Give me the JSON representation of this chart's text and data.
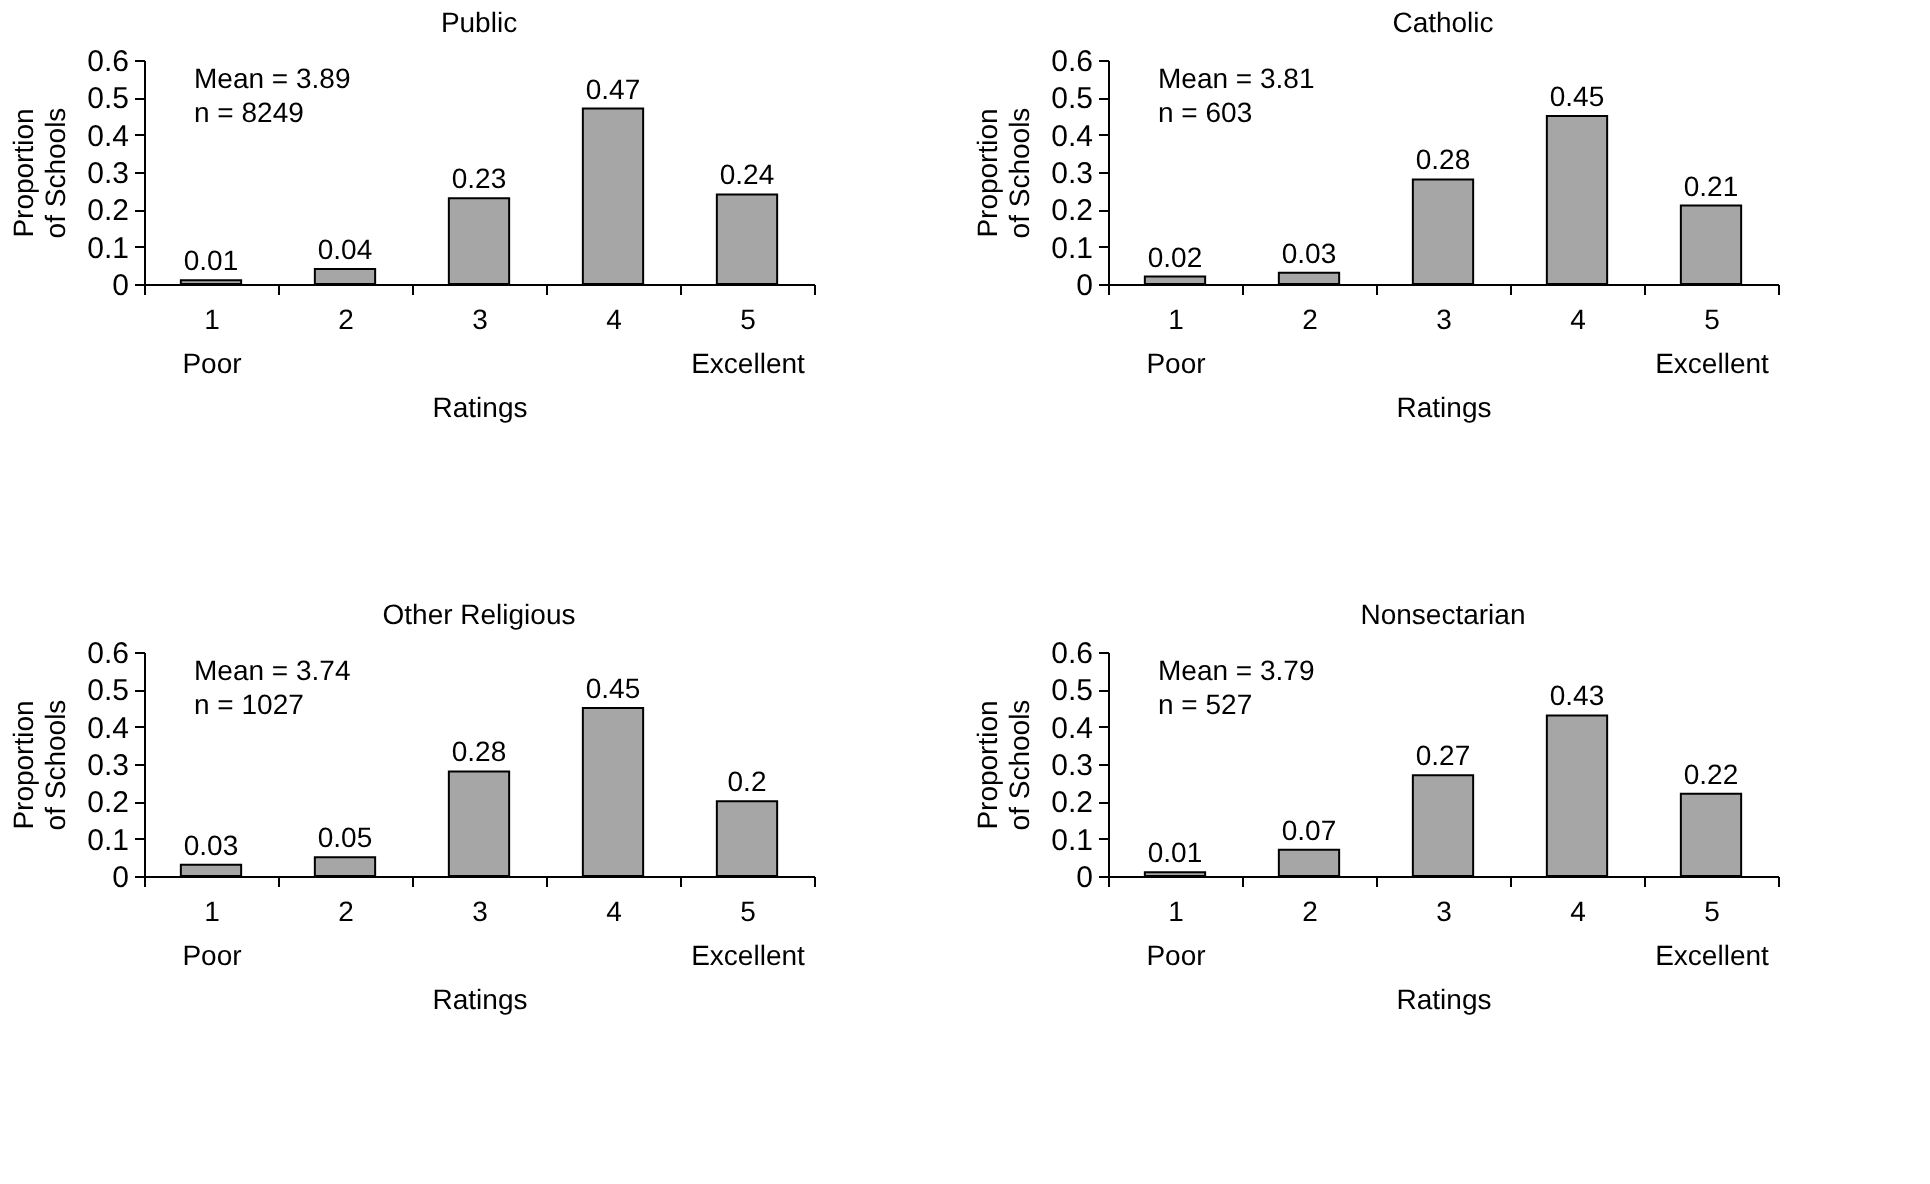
{
  "chart_data": [
    {
      "type": "bar",
      "title": "Public",
      "categories": [
        "1\nPoor",
        "2",
        "3",
        "4",
        "5\nExcellent"
      ],
      "values": [
        0.01,
        0.04,
        0.23,
        0.47,
        0.24
      ],
      "color": "#a6a6a6",
      "data_labels": true,
      "xlabel": "Ratings",
      "ylabel": "Proportion of Schools",
      "ylim": [
        0,
        0.6
      ],
      "yticks": [
        0,
        0.1,
        0.2,
        0.3,
        0.4,
        0.5,
        0.6
      ],
      "annotations": [
        "Mean = 3.89",
        "n = 8249"
      ]
    },
    {
      "type": "bar",
      "title": "Catholic",
      "categories": [
        "1\nPoor",
        "2",
        "3",
        "4",
        "5\nExcellent"
      ],
      "values": [
        0.02,
        0.03,
        0.28,
        0.45,
        0.21
      ],
      "color": "#a6a6a6",
      "data_labels": true,
      "xlabel": "Ratings",
      "ylabel": "Proportion of Schools",
      "ylim": [
        0,
        0.6
      ],
      "yticks": [
        0,
        0.1,
        0.2,
        0.3,
        0.4,
        0.5,
        0.6
      ],
      "annotations": [
        "Mean = 3.81",
        "n = 603"
      ]
    },
    {
      "type": "bar",
      "title": "Other Religious",
      "categories": [
        "1\nPoor",
        "2",
        "3",
        "4",
        "5\nExcellent"
      ],
      "values": [
        0.03,
        0.05,
        0.28,
        0.45,
        0.2
      ],
      "color": "#a6a6a6",
      "data_labels": true,
      "xlabel": "Ratings",
      "ylabel": "Proportion of Schools",
      "ylim": [
        0,
        0.6
      ],
      "yticks": [
        0,
        0.1,
        0.2,
        0.3,
        0.4,
        0.5,
        0.6
      ],
      "annotations": [
        "Mean = 3.74",
        "n = 1027"
      ]
    },
    {
      "type": "bar",
      "title": "Nonsectarian",
      "categories": [
        "1\nPoor",
        "2",
        "3",
        "4",
        "5\nExcellent"
      ],
      "values": [
        0.01,
        0.07,
        0.27,
        0.43,
        0.22
      ],
      "color": "#a6a6a6",
      "data_labels": true,
      "xlabel": "Ratings",
      "ylabel": "Proportion of Schools",
      "ylim": [
        0,
        0.6
      ],
      "yticks": [
        0,
        0.1,
        0.2,
        0.3,
        0.4,
        0.5,
        0.6
      ],
      "annotations": [
        "Mean = 3.79",
        "n = 527"
      ]
    }
  ]
}
